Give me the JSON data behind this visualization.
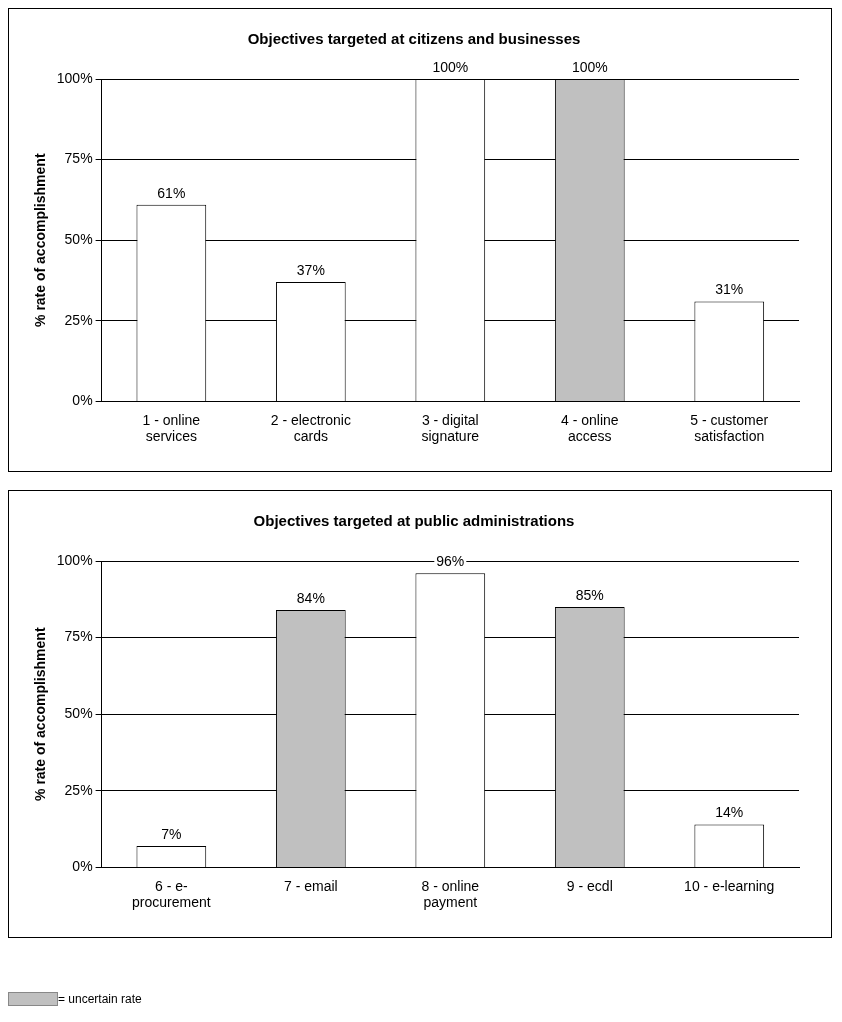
{
  "chart_data": [
    {
      "type": "bar",
      "title": "Objectives targeted at citizens and businesses",
      "ylabel": "% rate of accomplishment",
      "categories": [
        "1 - online services",
        "2 - electronic cards",
        "3 - digital signature",
        "4 - online access",
        "5 - customer satisfaction"
      ],
      "values": [
        61,
        37,
        100,
        100,
        31
      ],
      "colors": [
        "#ffffff",
        "#ffffff",
        "#ffffff",
        "#c0c0c0",
        "#ffffff"
      ],
      "value_labels": [
        "61%",
        "37%",
        "100%",
        "100%",
        "31%"
      ],
      "ylim": [
        0,
        100
      ],
      "yticks": [
        {
          "value": 0,
          "label": "0%"
        },
        {
          "value": 25,
          "label": "25%"
        },
        {
          "value": 50,
          "label": "50%"
        },
        {
          "value": 75,
          "label": "75%"
        },
        {
          "value": 100,
          "label": "100%"
        }
      ],
      "grid": "y",
      "legend": false
    },
    {
      "type": "bar",
      "title": "Objectives targeted at public administrations",
      "ylabel": "% rate of accomplishment",
      "categories": [
        "6 - e-procurement",
        "7 - email",
        "8 - online payment",
        "9 - ecdl",
        "10 - e-learning"
      ],
      "values": [
        7,
        84,
        96,
        85,
        14
      ],
      "colors": [
        "#ffffff",
        "#c0c0c0",
        "#ffffff",
        "#c0c0c0",
        "#ffffff"
      ],
      "value_labels": [
        "7%",
        "84%",
        "96%",
        "85%",
        "14%"
      ],
      "ylim": [
        0,
        100
      ],
      "yticks": [
        {
          "value": 0,
          "label": "0%"
        },
        {
          "value": 25,
          "label": "25%"
        },
        {
          "value": 50,
          "label": "50%"
        },
        {
          "value": 75,
          "label": "75%"
        },
        {
          "value": 100,
          "label": "100%"
        }
      ],
      "grid": "y",
      "legend": false,
      "annotations": [
        "= uncertain rate"
      ]
    }
  ]
}
